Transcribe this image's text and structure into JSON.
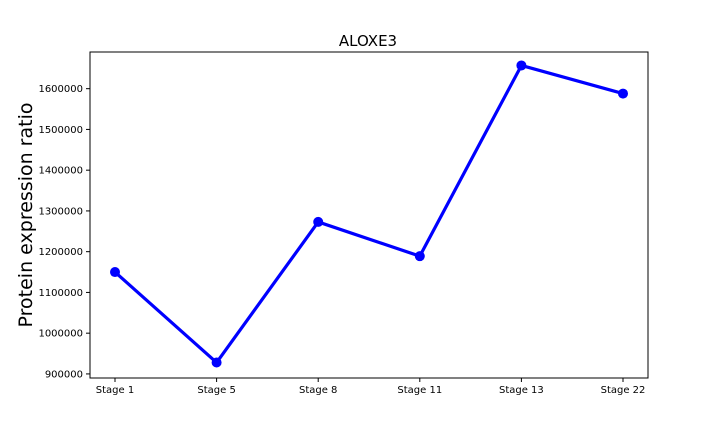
{
  "chart_data": {
    "type": "line",
    "title": "ALOXE3",
    "xlabel": "",
    "ylabel": "Protein expression ratio",
    "categories": [
      "Stage 1",
      "Stage 5",
      "Stage 8",
      "Stage 11",
      "Stage 13",
      "Stage 22"
    ],
    "values": [
      1150000,
      928000,
      1273000,
      1189000,
      1657000,
      1588000
    ],
    "yticks": [
      900000,
      1000000,
      1100000,
      1200000,
      1300000,
      1400000,
      1500000,
      1600000
    ],
    "ylim": [
      890000,
      1690000
    ],
    "grid": false,
    "legend": "none",
    "line_color": "#0000ff"
  }
}
